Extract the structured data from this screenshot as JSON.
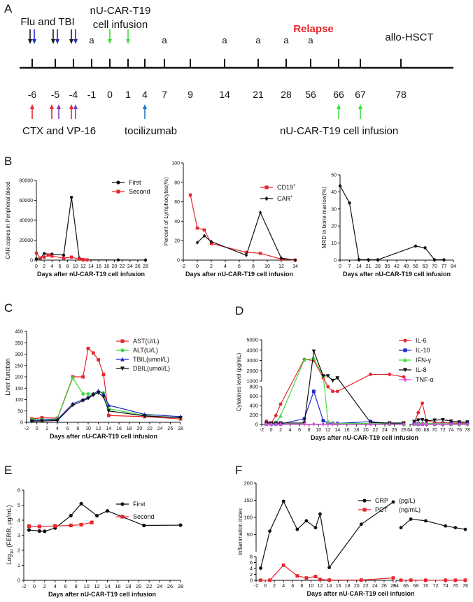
{
  "panels": {
    "A": "A",
    "B": "B",
    "C": "C",
    "D": "D",
    "E": "E",
    "F": "F"
  },
  "timeline": {
    "days": [
      "-6",
      "-5",
      "-4",
      "-1",
      "0",
      "1",
      "4",
      "7",
      "9",
      "14",
      "21",
      "28",
      "56",
      "66",
      "67",
      "78"
    ],
    "top_labels": {
      "flu_tbi": "Flu and TBI",
      "car_infusion_1": "nU-CAR-T19",
      "car_infusion_2": "cell infusion",
      "relapse": "Relapse",
      "allo": "allo-HSCT",
      "a_mark": "a"
    },
    "bottom_labels": {
      "ctx_vp16": "CTX  and VP-16",
      "toci": "tocilizumab",
      "infusion2": "nU-CAR-T19  cell infusion"
    },
    "a_days": [
      "-1",
      "7",
      "14",
      "21",
      "28",
      "56"
    ],
    "colors": {
      "black": "#1a1a1a",
      "blue": "#1d2bc8",
      "red": "#e8262d",
      "purple": "#7a3fb8",
      "green": "#3fdc3f",
      "relapse": "#e8262d",
      "toci": "#1e78c8"
    }
  },
  "chart_data": [
    {
      "id": "B1",
      "type": "line",
      "ylabel": "CAR copies in Peripheral blood",
      "xlabel": "Days after nU-CAR-T19 cell infusion",
      "xlim": [
        0,
        28
      ],
      "ylim": [
        0,
        80000
      ],
      "xticks": [
        0,
        2,
        4,
        6,
        8,
        10,
        12,
        14,
        16,
        18,
        20,
        22,
        24,
        26,
        28
      ],
      "yticks": [
        0,
        20000,
        40000,
        60000,
        80000
      ],
      "legend": "top-right",
      "series": [
        {
          "name": "First",
          "color": "#111111",
          "marker": "circle",
          "x": [
            0,
            1,
            2,
            4,
            7,
            9,
            11,
            13,
            21,
            28
          ],
          "y": [
            1200,
            1800,
            6500,
            6000,
            5000,
            63000,
            2000,
            200,
            100,
            50
          ]
        },
        {
          "name": "Second",
          "color": "#e8262d",
          "marker": "square",
          "x": [
            0,
            1,
            2,
            3,
            4,
            7,
            9,
            11,
            12,
            13
          ],
          "y": [
            7000,
            2000,
            3000,
            5000,
            4000,
            2000,
            3000,
            1000,
            500,
            200
          ]
        }
      ]
    },
    {
      "id": "B2",
      "type": "line",
      "ylabel": "Percent of Lymphocytes(%)",
      "xlabel": "Days after nU-CAR-T19 cell infusion",
      "xlim": [
        -2,
        14
      ],
      "ylim": [
        0,
        100
      ],
      "xticks": [
        -2,
        0,
        2,
        4,
        6,
        8,
        10,
        12,
        14
      ],
      "yticks": [
        0,
        20,
        40,
        60,
        80,
        100
      ],
      "legend": "top-right",
      "series": [
        {
          "name": "CD19",
          "sup": "+",
          "color": "#e8262d",
          "marker": "square",
          "x": [
            -1,
            0,
            1,
            2,
            7,
            9,
            12,
            14
          ],
          "y": [
            67,
            33,
            31,
            17,
            8,
            7,
            1,
            0
          ]
        },
        {
          "name": "CAR",
          "sup": "+",
          "color": "#111111",
          "marker": "diamond",
          "x": [
            0,
            1,
            2,
            7,
            9,
            12,
            14
          ],
          "y": [
            18,
            25,
            19,
            5,
            49,
            2,
            0
          ]
        }
      ]
    },
    {
      "id": "B3",
      "type": "line",
      "ylabel": "MRD in bone marrow(%)",
      "xlabel": "Days after nU-CAR-T19 cell infusion",
      "xlim": [
        0,
        84
      ],
      "ylim": [
        0,
        50
      ],
      "xticks": [
        0,
        7,
        14,
        21,
        28,
        35,
        42,
        49,
        56,
        63,
        70,
        77,
        84
      ],
      "yticks": [
        0,
        10,
        20,
        30,
        40,
        50
      ],
      "series": [
        {
          "name": "MRD",
          "color": "#111111",
          "marker": "circle",
          "x": [
            0,
            7,
            14,
            21,
            28,
            56,
            63,
            70,
            77
          ],
          "y": [
            43.5,
            33.5,
            0.3,
            0.2,
            0.2,
            8.2,
            7.2,
            0.2,
            0.2
          ]
        }
      ]
    },
    {
      "id": "C",
      "type": "line",
      "ylabel": "Liver function",
      "xlabel": "Days after nU-CAR-T19 cell infusion",
      "xlim": [
        -2,
        28
      ],
      "ylim": [
        0,
        400
      ],
      "xticks": [
        -2,
        0,
        2,
        4,
        6,
        8,
        10,
        12,
        14,
        16,
        18,
        20,
        22,
        24,
        26,
        28
      ],
      "yticks": [
        0,
        50,
        100,
        150,
        200,
        250,
        300,
        350,
        400
      ],
      "legend": "top-right",
      "series": [
        {
          "name": "AST(U/L)",
          "color": "#e8262d",
          "marker": "square",
          "x": [
            -1,
            1,
            4,
            7,
            9,
            10,
            11,
            12,
            13,
            14,
            21,
            28
          ],
          "y": [
            15,
            20,
            18,
            200,
            200,
            325,
            305,
            275,
            210,
            30,
            25,
            15
          ]
        },
        {
          "name": "ALT(U/L)",
          "color": "#3fdc3f",
          "marker": "circle",
          "x": [
            -1,
            1,
            4,
            7,
            9,
            10,
            11,
            12,
            13,
            14,
            21,
            28
          ],
          "y": [
            12,
            12,
            15,
            195,
            125,
            125,
            125,
            135,
            130,
            60,
            30,
            20
          ]
        },
        {
          "name": "TBIL(umol/L)",
          "color": "#1d2bc8",
          "marker": "triangle",
          "x": [
            -1,
            1,
            4,
            7,
            9,
            10,
            11,
            12,
            13,
            14,
            21,
            28
          ],
          "y": [
            8,
            10,
            12,
            82,
            100,
            110,
            125,
            138,
            125,
            75,
            35,
            25
          ]
        },
        {
          "name": "DBIL(umol/L)",
          "color": "#111111",
          "marker": "tri-down",
          "x": [
            -1,
            1,
            4,
            7,
            9,
            10,
            11,
            12,
            13,
            14,
            21,
            28
          ],
          "y": [
            5,
            6,
            8,
            75,
            95,
            105,
            120,
            130,
            112,
            50,
            28,
            20
          ]
        }
      ]
    },
    {
      "id": "D",
      "type": "line",
      "ylabel": "Cytokines level (pg/mL)",
      "xlabel": "Days after nU-CAR-T19 cell infusion",
      "ylim": [
        0,
        5000
      ],
      "yticks_upper": [
        1000,
        2000,
        3000,
        4000,
        5000
      ],
      "yticks_lower": [
        0,
        200,
        400,
        600,
        800
      ],
      "xticks_left": [
        -2,
        0,
        2,
        4,
        6,
        8,
        10,
        12,
        14,
        16,
        18,
        20,
        22,
        24,
        26,
        28
      ],
      "xticks_right": [
        64,
        66,
        68,
        70,
        72,
        74,
        76,
        78
      ],
      "legend": "top-right",
      "series": [
        {
          "name": "IL-6",
          "color": "#e8262d",
          "marker": "circle",
          "x": [
            -1,
            0,
            1,
            2,
            7,
            9,
            11,
            12,
            13,
            14,
            21,
            25,
            28,
            65,
            66,
            67,
            68,
            70,
            72,
            74,
            76,
            78
          ],
          "y": [
            70,
            20,
            190,
            430,
            3100,
            3000,
            1300,
            800,
            700,
            700,
            1650,
            1650,
            1400,
            30,
            250,
            450,
            80,
            40,
            40,
            30,
            30,
            30
          ]
        },
        {
          "name": "IL-10",
          "color": "#1d2bc8",
          "marker": "square",
          "x": [
            -1,
            0,
            1,
            2,
            7,
            9,
            11,
            12,
            13,
            14,
            21,
            25,
            28,
            65,
            66,
            67,
            68,
            70,
            72,
            74,
            76,
            78
          ],
          "y": [
            10,
            10,
            10,
            10,
            120,
            700,
            80,
            30,
            20,
            20,
            60,
            15,
            10,
            10,
            10,
            10,
            10,
            10,
            10,
            10,
            10,
            10
          ]
        },
        {
          "name": "IFN-γ",
          "color": "#3fdc3f",
          "marker": "triangle",
          "x": [
            -1,
            0,
            1,
            2,
            7,
            9,
            11,
            12,
            13,
            14,
            21,
            25,
            28,
            65,
            66,
            67,
            68,
            70,
            72,
            74,
            76,
            78
          ],
          "y": [
            20,
            20,
            40,
            180,
            3050,
            3200,
            1500,
            60,
            20,
            20,
            20,
            10,
            10,
            10,
            20,
            30,
            20,
            20,
            20,
            10,
            10,
            10
          ]
        },
        {
          "name": "IL-8",
          "color": "#111111",
          "marker": "tri-down",
          "x": [
            -1,
            0,
            1,
            2,
            7,
            9,
            11,
            12,
            13,
            14,
            21,
            25,
            28,
            65,
            66,
            67,
            68,
            70,
            72,
            74,
            76,
            78
          ],
          "y": [
            30,
            30,
            30,
            30,
            30,
            3900,
            1500,
            1500,
            1050,
            1300,
            40,
            30,
            30,
            60,
            90,
            100,
            80,
            90,
            100,
            70,
            50,
            50
          ]
        },
        {
          "name": "TNF-α",
          "color": "#e04ae0",
          "marker": "diamond",
          "x": [
            -1,
            0,
            1,
            2,
            7,
            9,
            11,
            12,
            13,
            14,
            21,
            25,
            28,
            65,
            66,
            67,
            68,
            70,
            72,
            74,
            76,
            78
          ],
          "y": [
            5,
            5,
            5,
            5,
            5,
            5,
            5,
            5,
            5,
            5,
            5,
            5,
            5,
            5,
            5,
            5,
            5,
            5,
            5,
            5,
            5,
            5
          ]
        }
      ]
    },
    {
      "id": "E",
      "type": "line",
      "ylabel": "Log10 (FERR, pg/mL)",
      "ylabel_pre": "Log",
      "ylabel_sub": "10",
      "ylabel_post": " (FERR, pg/mL)",
      "xlabel": "Days after nU-CAR-T19 cell infusion",
      "xlim": [
        -2,
        28
      ],
      "ylim": [
        0,
        6
      ],
      "xticks": [
        -2,
        0,
        2,
        4,
        6,
        8,
        10,
        12,
        14,
        16,
        18,
        20,
        22,
        24,
        26,
        28
      ],
      "yticks": [
        0,
        1,
        2,
        3,
        4,
        5,
        6
      ],
      "legend": "top-right",
      "series": [
        {
          "name": "First",
          "color": "#111111",
          "marker": "circle",
          "x": [
            -1,
            1,
            2,
            4,
            7,
            9,
            12,
            14,
            21,
            28
          ],
          "y": [
            3.35,
            3.28,
            3.26,
            3.48,
            4.3,
            5.1,
            4.3,
            4.62,
            3.65,
            3.67
          ]
        },
        {
          "name": "Second",
          "color": "#e8262d",
          "marker": "square",
          "x": [
            -1,
            1,
            4,
            7,
            9,
            11
          ],
          "y": [
            3.6,
            3.58,
            3.62,
            3.65,
            3.7,
            3.85
          ]
        }
      ]
    },
    {
      "id": "F",
      "type": "line",
      "ylabel": "Inflammation index",
      "xlabel": "Days after nU-CAR-T19 cell infusion",
      "yticks_upper": [
        50,
        100,
        150,
        200
      ],
      "yticks_lower": [
        0,
        2,
        4,
        6,
        8
      ],
      "xticks_left": [
        -2,
        0,
        2,
        4,
        6,
        8,
        10,
        12,
        14,
        16,
        18,
        20,
        22,
        24,
        26,
        28
      ],
      "xticks_right": [
        64,
        66,
        68,
        70,
        72,
        74,
        76,
        78
      ],
      "legend": "top-right",
      "series": [
        {
          "name": "CRP",
          "unit": "(pg/L)",
          "color": "#111111",
          "marker": "circle",
          "x": [
            -1,
            1,
            4,
            7,
            9,
            11,
            12,
            14,
            21,
            28,
            65,
            67,
            70,
            74,
            76,
            78
          ],
          "y": [
            4.1,
            60,
            147,
            65,
            90,
            70,
            110,
            4.3,
            80,
            145,
            70,
            95,
            90,
            75,
            70,
            65
          ]
        },
        {
          "name": "PCT",
          "unit": "(ng/mL)",
          "color": "#e8262d",
          "marker": "square",
          "x": [
            -1,
            1,
            4,
            7,
            9,
            11,
            12,
            14,
            21,
            28,
            65,
            67,
            70,
            74,
            76,
            78
          ],
          "y": [
            0.05,
            0.05,
            5.1,
            1.5,
            0.8,
            1.3,
            0.3,
            0.1,
            0.1,
            0.8,
            0.05,
            0.05,
            0.05,
            0.05,
            0.05,
            0.05
          ]
        }
      ]
    }
  ]
}
